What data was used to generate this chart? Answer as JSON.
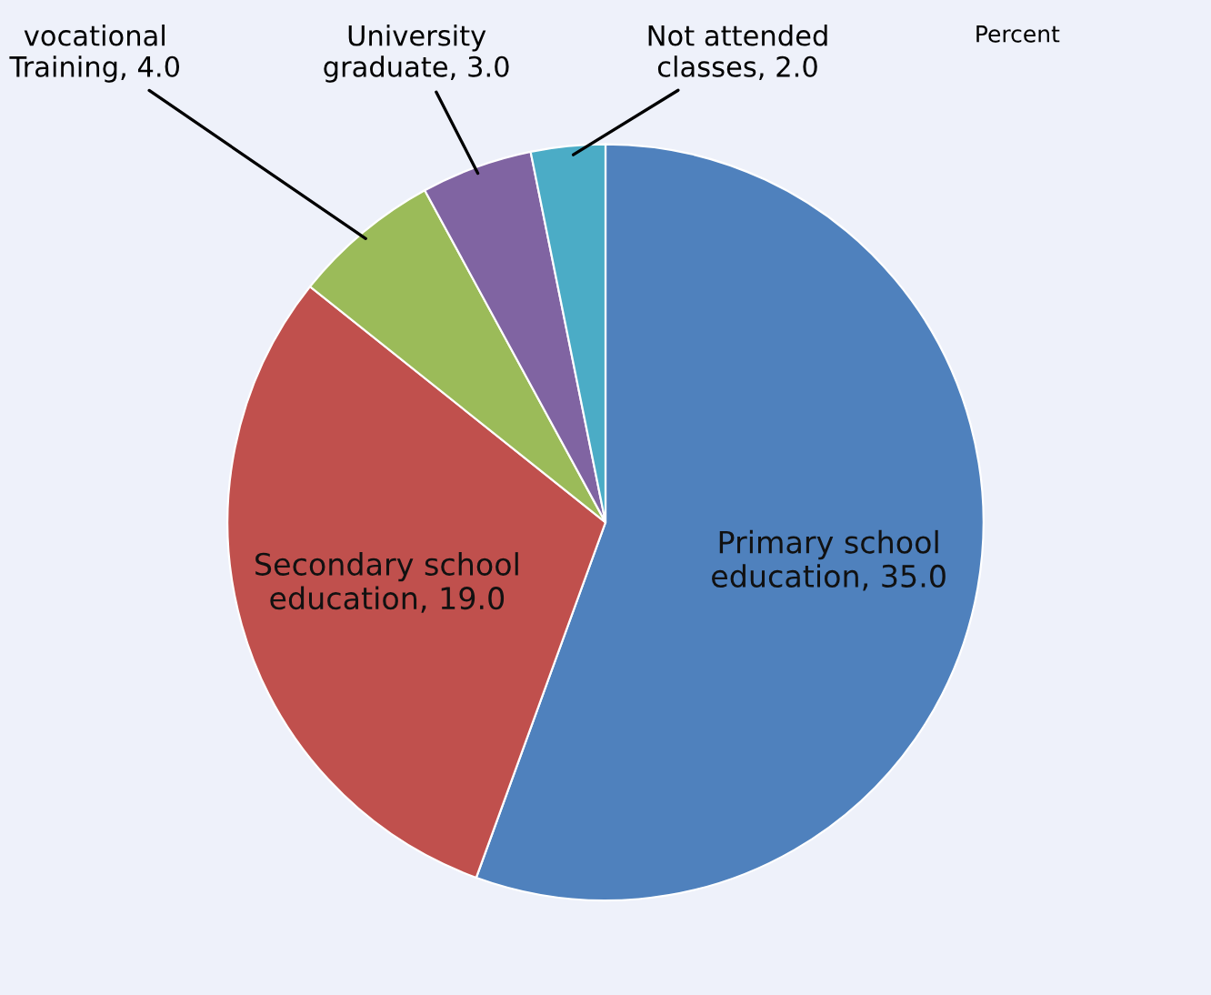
{
  "chart_data": {
    "type": "pie",
    "title": "Percent",
    "categories": [
      "Primary school education",
      "Secondary school education",
      "vocational Training",
      "University graduate",
      "Not attended classes"
    ],
    "values": [
      35,
      19,
      4,
      3,
      2
    ],
    "value_labels": [
      "35.0",
      "19.0",
      "4.0",
      "3.0",
      "2.0"
    ],
    "colors": [
      "#4f81bd",
      "#c0504d",
      "#9bbb59",
      "#8064a2",
      "#4bacc6"
    ],
    "legend": false
  }
}
